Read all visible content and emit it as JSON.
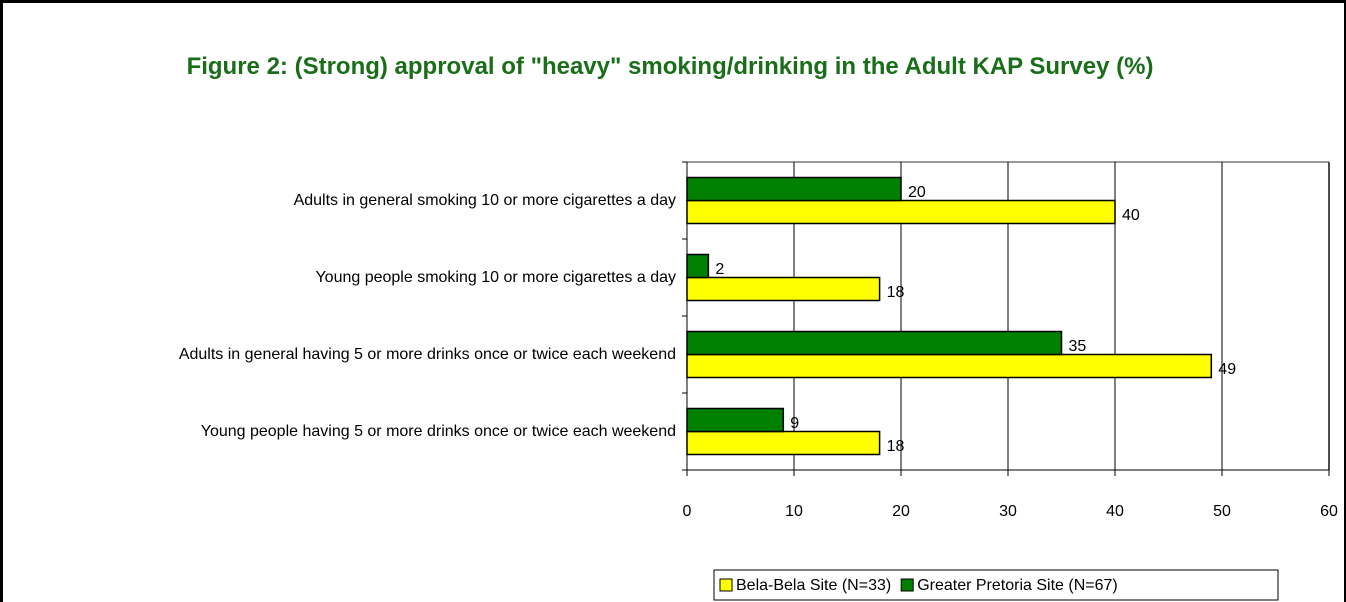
{
  "chart_data": {
    "type": "hbar",
    "title": "Figure 2: (Strong) approval of \"heavy\" smoking/drinking in the Adult KAP Survey (%)",
    "categories": [
      "Adults in general smoking 10 or more cigarettes a day",
      "Young people smoking 10 or more cigarettes a day",
      "Adults in general having 5 or more drinks once or twice each weekend",
      "Young people having 5 or more drinks once or twice each weekend"
    ],
    "series": [
      {
        "name": "Bela-Bela Site (N=33)",
        "color": "#ffff00",
        "values": [
          40,
          18,
          49,
          18
        ]
      },
      {
        "name": "Greater Pretoria Site (N=67)",
        "color": "#008000",
        "values": [
          20,
          2,
          35,
          9
        ]
      }
    ],
    "xlim": [
      0,
      60
    ],
    "xticks": [
      0,
      10,
      20,
      30,
      40,
      50,
      60
    ],
    "grid": true,
    "legend": "bottom"
  }
}
